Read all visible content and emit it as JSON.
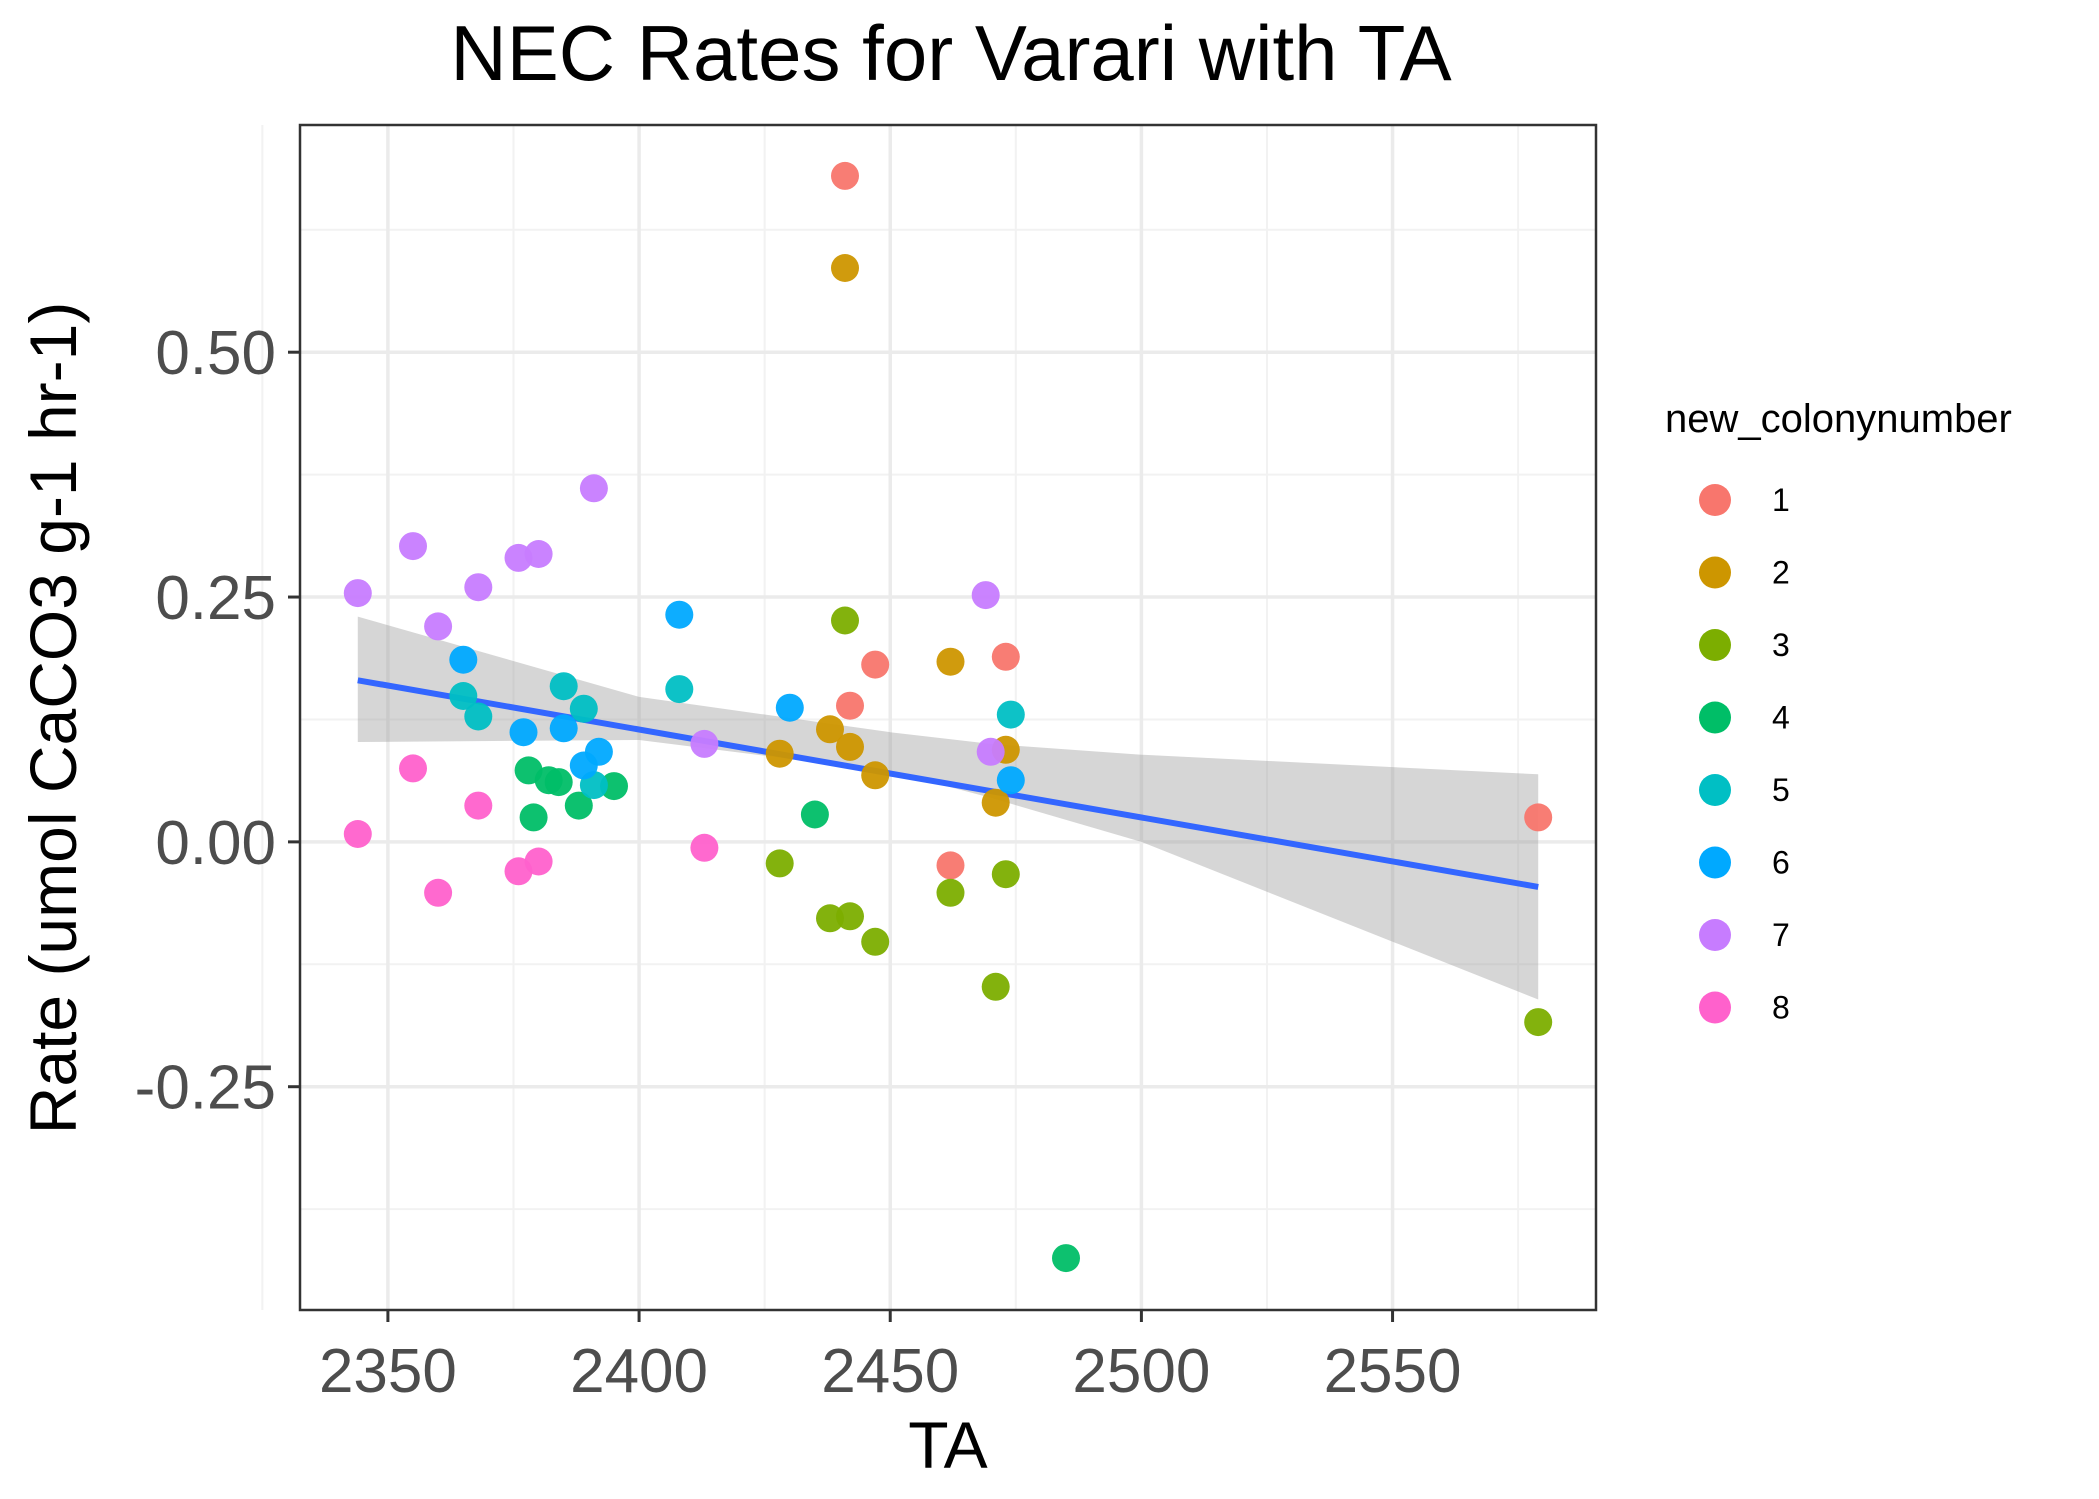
{
  "chart_data": {
    "type": "scatter",
    "title": "NEC Rates for Varari with TA",
    "xlabel": "TA",
    "ylabel": "Rate (umol CaCO3 g-1 hr-1)",
    "xlim": [
      2332.5,
      2590.5
    ],
    "ylim": [
      -0.478,
      0.732
    ],
    "x_ticks": [
      2350,
      2400,
      2450,
      2500,
      2550
    ],
    "x_tick_labels": [
      "2350",
      "2400",
      "2450",
      "2500",
      "2550"
    ],
    "y_ticks": [
      -0.25,
      0,
      0.25,
      0.5
    ],
    "y_tick_labels": [
      "-0.25",
      "0.00",
      "0.25",
      "0.50"
    ],
    "grid": true,
    "legend": {
      "title": "new_colonynumber",
      "position": "right"
    },
    "series": [
      {
        "name": "1",
        "color": "#F8766D",
        "x": [
          2441,
          2447,
          2442,
          2473,
          2462,
          2579
        ],
        "y": [
          0.68,
          0.181,
          0.139,
          0.189,
          -0.024,
          0.025
        ]
      },
      {
        "name": "2",
        "color": "#CD9600",
        "x": [
          2441,
          2462,
          2438,
          2442,
          2447,
          2428,
          2473,
          2471
        ],
        "y": [
          0.586,
          0.184,
          0.115,
          0.097,
          0.068,
          0.09,
          0.094,
          0.04
        ],
        "comment": ""
      },
      {
        "name": "3",
        "color": "#7CAE00",
        "x": [
          2441,
          2428,
          2438,
          2442,
          2447,
          2462,
          2473,
          2471,
          2579
        ],
        "y": [
          0.226,
          -0.022,
          -0.078,
          -0.076,
          -0.102,
          -0.052,
          -0.033,
          -0.148,
          -0.184
        ]
      },
      {
        "name": "4",
        "color": "#00BE67",
        "x": [
          2378,
          2382,
          2384,
          2379,
          2388,
          2395,
          2435,
          2485
        ],
        "y": [
          0.073,
          0.063,
          0.061,
          0.025,
          0.037,
          0.057,
          0.028,
          -0.425
        ]
      },
      {
        "name": "5",
        "color": "#00BFC4",
        "x": [
          2365,
          2368,
          2385,
          2389,
          2408,
          2474,
          2391
        ],
        "y": [
          0.149,
          0.128,
          0.159,
          0.136,
          0.156,
          0.13,
          0.058
        ]
      },
      {
        "name": "6",
        "color": "#00A9FF",
        "x": [
          2365,
          2377,
          2385,
          2389,
          2392,
          2408,
          2430,
          2474
        ],
        "y": [
          0.186,
          0.112,
          0.116,
          0.078,
          0.092,
          0.232,
          0.137,
          0.063
        ]
      },
      {
        "name": "7",
        "color": "#C77CFF",
        "x": [
          2344,
          2355,
          2360,
          2368,
          2376,
          2380,
          2391,
          2413,
          2469,
          2470
        ],
        "y": [
          0.254,
          0.302,
          0.22,
          0.26,
          0.29,
          0.294,
          0.361,
          0.1,
          0.252,
          0.092
        ]
      },
      {
        "name": "8",
        "color": "#FF61CC",
        "x": [
          2344,
          2355,
          2360,
          2368,
          2376,
          2380,
          2413
        ],
        "y": [
          0.008,
          0.075,
          -0.052,
          0.037,
          -0.03,
          -0.02,
          -0.006
        ]
      }
    ],
    "fit": {
      "method": "linear",
      "color": "#3366FF",
      "band_color": "#999999",
      "x": [
        2344,
        2579
      ],
      "y": [
        0.165,
        -0.046
      ],
      "band": {
        "x": [
          2344,
          2400,
          2450,
          2470,
          2500,
          2579
        ],
        "lower": [
          0.102,
          0.104,
          0.072,
          0.045,
          0.0,
          -0.161
        ],
        "upper": [
          0.23,
          0.148,
          0.112,
          0.1,
          0.089,
          0.069
        ]
      }
    }
  }
}
